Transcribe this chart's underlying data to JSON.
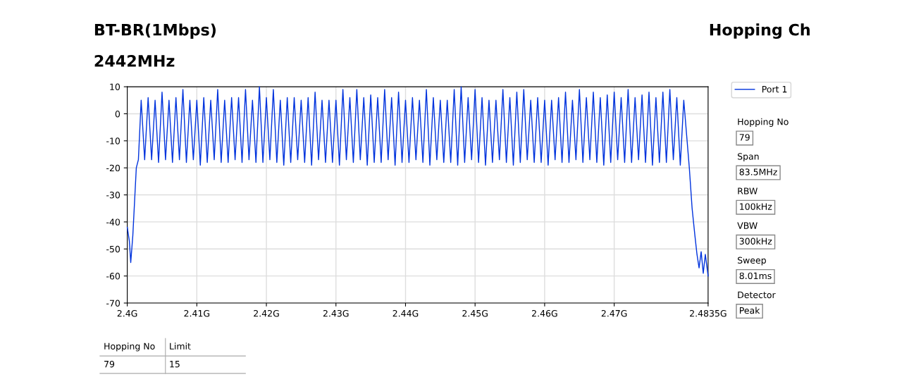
{
  "chart_data": {
    "type": "line",
    "title": "BT-BR(1Mbps)",
    "subtitle": "2442MHz",
    "annotations": [
      "Hopping Ch",
      "Hopping No",
      "79",
      "Span",
      "83.5MHz",
      "RBW",
      "100kHz",
      "VBW",
      "300kHz",
      "Sweep",
      "8.01ms",
      "Detector",
      "Peak",
      "Hopping No",
      "Limit",
      "79",
      "15"
    ],
    "series": [
      {
        "name": "Port 1",
        "color": "#0033dd",
        "x": [
          2.4,
          2.4003,
          2.4005,
          2.4008,
          2.4011,
          2.4013,
          2.4016,
          2.402,
          2.4025,
          2.403,
          2.4035,
          2.404,
          2.4045,
          2.405,
          2.4055,
          2.406,
          2.4065,
          2.407,
          2.4075,
          2.408,
          2.4085,
          2.409,
          2.4095,
          2.41,
          2.4105,
          2.411,
          2.4115,
          2.412,
          2.4125,
          2.413,
          2.4135,
          2.414,
          2.4145,
          2.415,
          2.4155,
          2.416,
          2.4165,
          2.417,
          2.4175,
          2.418,
          2.4185,
          2.419,
          2.4195,
          2.42,
          2.4205,
          2.421,
          2.4215,
          2.422,
          2.4225,
          2.423,
          2.4235,
          2.424,
          2.4245,
          2.425,
          2.4255,
          2.426,
          2.4265,
          2.427,
          2.4275,
          2.428,
          2.4285,
          2.429,
          2.4295,
          2.43,
          2.4305,
          2.431,
          2.4315,
          2.432,
          2.4325,
          2.433,
          2.4335,
          2.434,
          2.4345,
          2.435,
          2.4355,
          2.436,
          2.4365,
          2.437,
          2.4375,
          2.438,
          2.4385,
          2.439,
          2.4395,
          2.44,
          2.4405,
          2.441,
          2.4415,
          2.442,
          2.4425,
          2.443,
          2.4435,
          2.444,
          2.4445,
          2.445,
          2.4455,
          2.446,
          2.4465,
          2.447,
          2.4475,
          2.448,
          2.4485,
          2.449,
          2.4495,
          2.45,
          2.4505,
          2.451,
          2.4515,
          2.452,
          2.4525,
          2.453,
          2.4535,
          2.454,
          2.4545,
          2.455,
          2.4555,
          2.456,
          2.4565,
          2.457,
          2.4575,
          2.458,
          2.4585,
          2.459,
          2.4595,
          2.46,
          2.4605,
          2.461,
          2.4615,
          2.462,
          2.4625,
          2.463,
          2.4635,
          2.464,
          2.4645,
          2.465,
          2.4655,
          2.466,
          2.4665,
          2.467,
          2.4675,
          2.468,
          2.4685,
          2.469,
          2.4695,
          2.47,
          2.4705,
          2.471,
          2.4715,
          2.472,
          2.4725,
          2.473,
          2.4735,
          2.474,
          2.4745,
          2.475,
          2.4755,
          2.476,
          2.4765,
          2.477,
          2.4775,
          2.478,
          2.4785,
          2.479,
          2.4795,
          2.48,
          2.4808,
          2.4812,
          2.4816,
          2.4819,
          2.4822,
          2.4825,
          2.4828,
          2.4831,
          2.4835
        ],
        "values": [
          -42,
          -47,
          -55,
          -45,
          -30,
          -20,
          -17,
          5,
          -17,
          6,
          -17,
          5,
          -18,
          8,
          -17,
          5,
          -18,
          6,
          -17,
          9,
          -18,
          5,
          -17,
          5,
          -19,
          6,
          -18,
          5,
          -17,
          9,
          -18,
          5,
          -18,
          6,
          -17,
          6,
          -18,
          9,
          -17,
          5,
          -18,
          10,
          -18,
          6,
          -17,
          9,
          -18,
          5,
          -19,
          6,
          -18,
          6,
          -17,
          5,
          -18,
          6,
          -19,
          8,
          -17,
          5,
          -18,
          5,
          -18,
          5,
          -19,
          9,
          -17,
          6,
          -18,
          9,
          -17,
          6,
          -19,
          7,
          -18,
          6,
          -18,
          9,
          -17,
          6,
          -19,
          8,
          -18,
          5,
          -18,
          6,
          -17,
          5,
          -18,
          9,
          -19,
          6,
          -17,
          5,
          -18,
          5,
          -18,
          9,
          -19,
          10,
          -18,
          6,
          -17,
          9,
          -18,
          6,
          -19,
          5,
          -18,
          5,
          -17,
          9,
          -18,
          6,
          -19,
          8,
          -18,
          9,
          -17,
          5,
          -18,
          6,
          -18,
          5,
          -19,
          5,
          -17,
          6,
          -18,
          8,
          -18,
          5,
          -17,
          9,
          -18,
          6,
          -17,
          8,
          -18,
          6,
          -19,
          7,
          -18,
          8,
          -17,
          6,
          -18,
          9,
          -18,
          6,
          -17,
          7,
          -18,
          8,
          -19,
          6,
          -18,
          8,
          -18,
          9,
          -17,
          6,
          -19,
          5,
          -20,
          -35,
          -45,
          -52,
          -57,
          -51,
          -59,
          -52,
          -60
        ]
      }
    ],
    "xlim": [
      2.4,
      2.4835
    ],
    "xticks": [
      {
        "value": 2.4,
        "label": "2.4G"
      },
      {
        "value": 2.41,
        "label": "2.41G"
      },
      {
        "value": 2.42,
        "label": "2.42G"
      },
      {
        "value": 2.43,
        "label": "2.43G"
      },
      {
        "value": 2.44,
        "label": "2.44G"
      },
      {
        "value": 2.45,
        "label": "2.45G"
      },
      {
        "value": 2.46,
        "label": "2.46G"
      },
      {
        "value": 2.47,
        "label": "2.47G"
      },
      {
        "value": 2.4835,
        "label": "2.4835G"
      }
    ],
    "ylim": [
      -70,
      10
    ],
    "yticks": [
      -70,
      -60,
      -50,
      -40,
      -30,
      -20,
      -10,
      0,
      10
    ],
    "grid": true,
    "legend": "top right",
    "line_style": "solid"
  }
}
